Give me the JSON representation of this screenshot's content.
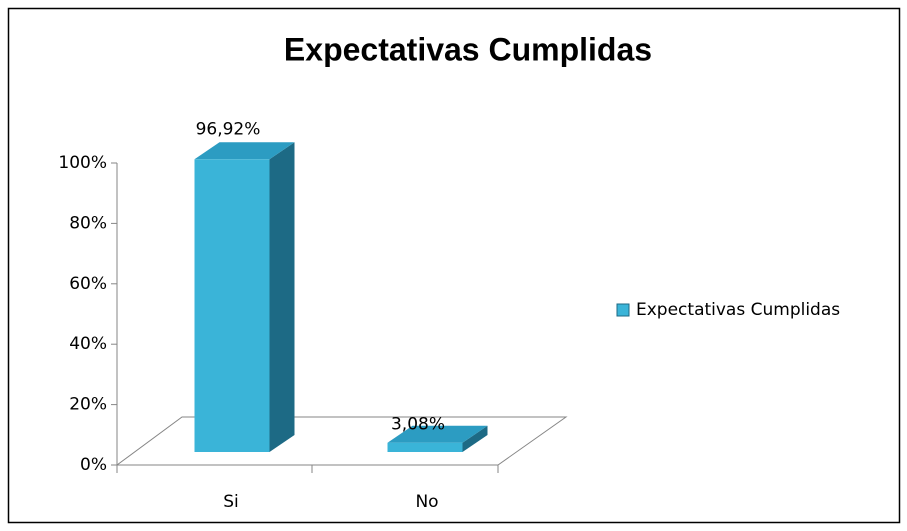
{
  "chart_data": {
    "type": "bar",
    "title": "Expectativas Cumplidas",
    "categories": [
      "Si",
      "No"
    ],
    "series": [
      {
        "name": "Expectativas Cumplidas",
        "color": "#3ab4d8",
        "values": [
          96.92,
          3.08
        ],
        "value_labels": [
          "96,92%",
          "3,08%"
        ]
      }
    ],
    "ylim": [
      0,
      100
    ],
    "yticks": [
      {
        "value": 0,
        "label": "0%"
      },
      {
        "value": 20,
        "label": "20%"
      },
      {
        "value": 40,
        "label": "40%"
      },
      {
        "value": 60,
        "label": "60%"
      },
      {
        "value": 80,
        "label": "80%"
      },
      {
        "value": 100,
        "label": "100%"
      }
    ],
    "legend": "right"
  }
}
